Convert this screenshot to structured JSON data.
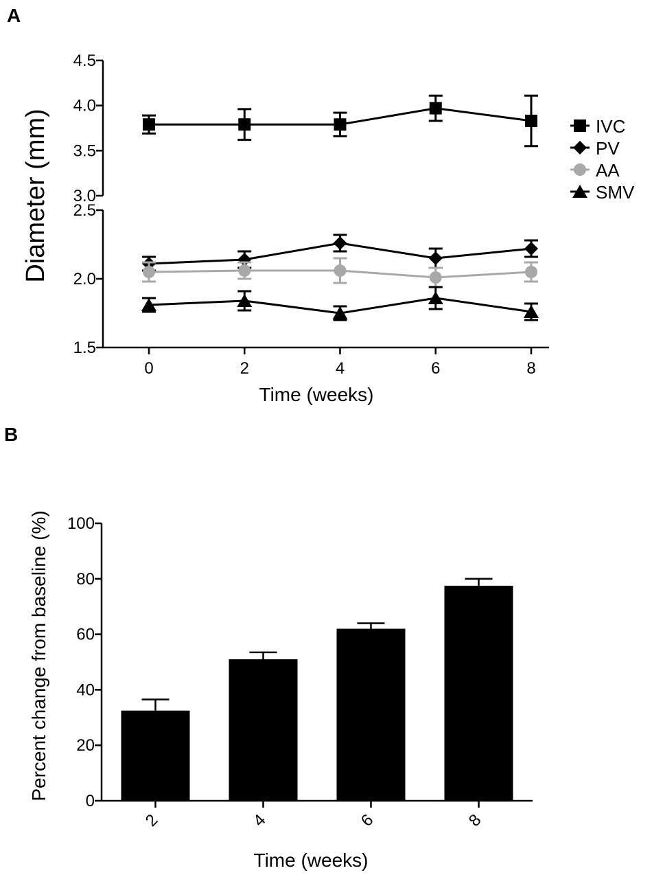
{
  "figure": {
    "panel_a_label": "A",
    "panel_b_label": "B"
  },
  "chart_data": [
    {
      "panel": "A",
      "type": "line",
      "title": "",
      "xlabel": "Time (weeks)",
      "ylabel": "Diameter (mm)",
      "x": [
        0,
        2,
        4,
        6,
        8
      ],
      "x_ticks": [
        0,
        2,
        4,
        6,
        8
      ],
      "xlim": [
        -0.9,
        8.1
      ],
      "y_axis_broken": true,
      "y_segments": [
        {
          "ylim": [
            3.0,
            4.5
          ],
          "ticks": [
            "3.0",
            "3.5",
            "4.0",
            "4.5"
          ]
        },
        {
          "ylim": [
            1.5,
            2.5
          ],
          "ticks": [
            "1.5",
            "2.0",
            "2.5"
          ]
        }
      ],
      "legend_position": "right",
      "series": [
        {
          "name": "IVC",
          "marker": "square",
          "color": "#000000",
          "values": [
            3.79,
            3.79,
            3.79,
            3.97,
            3.83
          ],
          "errors": [
            0.1,
            0.17,
            0.13,
            0.14,
            0.28
          ]
        },
        {
          "name": "PV",
          "marker": "diamond",
          "color": "#000000",
          "values": [
            2.11,
            2.14,
            2.26,
            2.15,
            2.22
          ],
          "errors": [
            0.05,
            0.06,
            0.06,
            0.07,
            0.06
          ]
        },
        {
          "name": "AA",
          "marker": "circle",
          "color": "#a8a8a8",
          "values": [
            2.05,
            2.06,
            2.06,
            2.01,
            2.05
          ],
          "errors": [
            0.07,
            0.06,
            0.09,
            0.07,
            0.07
          ]
        },
        {
          "name": "SMV",
          "marker": "triangle",
          "color": "#000000",
          "values": [
            1.81,
            1.84,
            1.75,
            1.86,
            1.76
          ],
          "errors": [
            0.05,
            0.07,
            0.05,
            0.08,
            0.06
          ]
        }
      ]
    },
    {
      "panel": "B",
      "type": "bar",
      "title": "",
      "xlabel": "Time (weeks)",
      "ylabel": "Percent change from baseline (%)",
      "categories": [
        "2",
        "4",
        "6",
        "8"
      ],
      "values": [
        32.5,
        51,
        62,
        77.5
      ],
      "errors": [
        4,
        2.5,
        2,
        2.5
      ],
      "color": "#000000",
      "ylim": [
        0,
        100
      ],
      "y_ticks": [
        "0",
        "20",
        "40",
        "60",
        "80",
        "100"
      ],
      "x_tick_rotation": -45
    }
  ]
}
